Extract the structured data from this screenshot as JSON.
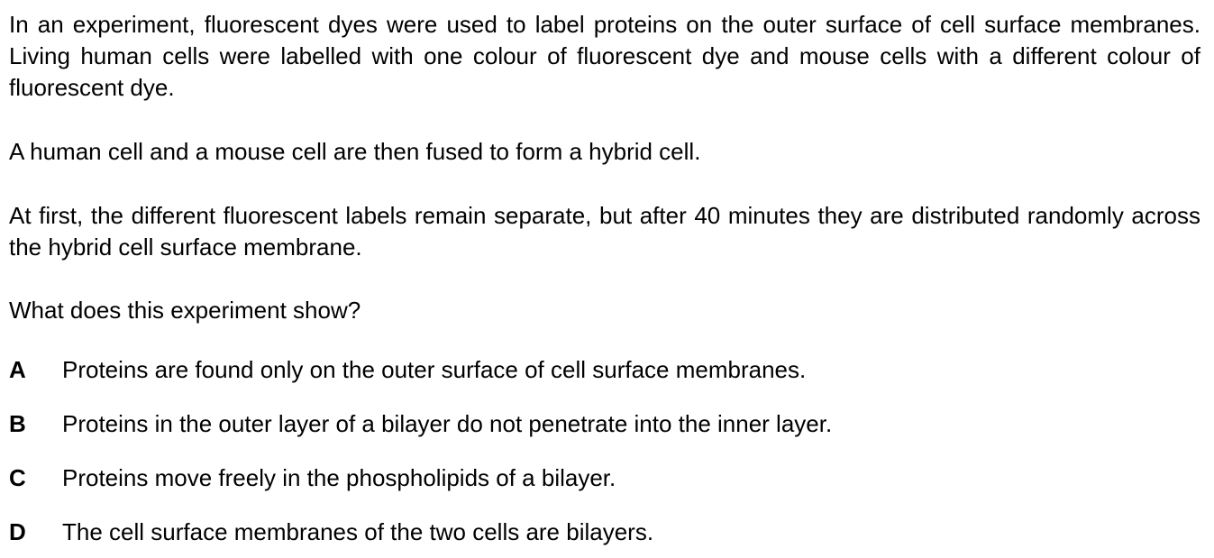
{
  "question": {
    "paragraphs": [
      "In an experiment, fluorescent dyes were used to label proteins on the outer surface of cell surface membranes. Living human cells were labelled with one colour of fluorescent dye and mouse cells with a different colour of fluorescent dye.",
      "A human cell and a mouse cell are then fused to form a hybrid cell.",
      "At first, the different fluorescent labels remain separate, but after 40 minutes they are distributed randomly across the hybrid cell surface membrane.",
      "What does this experiment show?"
    ],
    "options": [
      {
        "letter": "A",
        "text": "Proteins are found only on the outer surface of cell surface membranes."
      },
      {
        "letter": "B",
        "text": "Proteins in the outer layer of a bilayer do not penetrate into the inner layer."
      },
      {
        "letter": "C",
        "text": "Proteins move freely in the phospholipids of a bilayer."
      },
      {
        "letter": "D",
        "text": "The cell surface membranes of the two cells are bilayers."
      }
    ]
  }
}
